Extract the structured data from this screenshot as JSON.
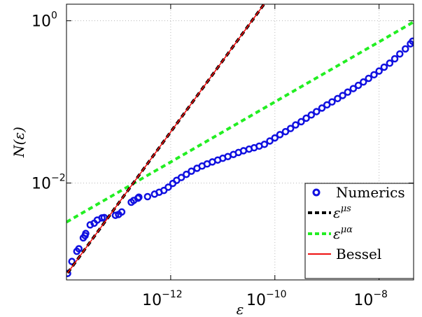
{
  "chart_data": {
    "type": "scatter",
    "title": "",
    "xlabel": "ε",
    "ylabel": "N(ε)",
    "xscale": "log",
    "yscale": "log",
    "xlim": [
      1e-14,
      4.6e-08
    ],
    "ylim": [
      0.00064,
      1.6
    ],
    "grid": true,
    "legend_position": "bottom-right",
    "x_ticks": [
      {
        "value": 1e-12,
        "base": "10",
        "exp": "−12"
      },
      {
        "value": 1e-10,
        "base": "10",
        "exp": "−10"
      },
      {
        "value": 1e-08,
        "base": "10",
        "exp": "−8"
      }
    ],
    "y_ticks": [
      {
        "value": 0.01,
        "base": "10",
        "exp": "−2"
      },
      {
        "value": 1,
        "base": "10",
        "exp": "0"
      }
    ],
    "legend": [
      {
        "key": "numerics",
        "label": "Numerics"
      },
      {
        "key": "mu_s",
        "label": "ε",
        "sup": "μs"
      },
      {
        "key": "mu_alpha",
        "label": "ε",
        "sup": "μα"
      },
      {
        "key": "bessel",
        "label": "Bessel"
      }
    ],
    "series": [
      {
        "key": "numerics",
        "type": "scatter",
        "color": "#1010e0",
        "points": [
          [
            1.05e-14,
            0.00077
          ],
          [
            1.27e-14,
            0.00108
          ],
          [
            1.58e-14,
            0.00144
          ],
          [
            1.73e-14,
            0.00155
          ],
          [
            2.1e-14,
            0.00211
          ],
          [
            2.27e-14,
            0.00225
          ],
          [
            2.34e-14,
            0.00239
          ],
          [
            2.85e-14,
            0.00305
          ],
          [
            3.4e-14,
            0.0032
          ],
          [
            3.9e-14,
            0.0035
          ],
          [
            4.8e-14,
            0.00372
          ],
          [
            5.3e-14,
            0.00376
          ],
          [
            8.7e-14,
            0.004
          ],
          [
            1e-13,
            0.0041
          ],
          [
            1.15e-13,
            0.0044
          ],
          [
            1.75e-13,
            0.0058
          ],
          [
            1.95e-13,
            0.0061
          ],
          [
            2.35e-13,
            0.0065
          ],
          [
            2.45e-13,
            0.0067
          ],
          [
            3.6e-13,
            0.0068
          ],
          [
            4.9e-13,
            0.0073
          ],
          [
            6e-13,
            0.0077
          ],
          [
            7.4e-13,
            0.0081
          ],
          [
            9e-13,
            0.0089
          ],
          [
            1.1e-12,
            0.0099
          ],
          [
            1.3e-12,
            0.0108
          ],
          [
            1.6e-12,
            0.0117
          ],
          [
            2e-12,
            0.0128
          ],
          [
            2.5e-12,
            0.014
          ],
          [
            3.2e-12,
            0.0152
          ],
          [
            4e-12,
            0.0162
          ],
          [
            5e-12,
            0.0172
          ],
          [
            6.3e-12,
            0.0182
          ],
          [
            8e-12,
            0.0192
          ],
          [
            1e-11,
            0.0202
          ],
          [
            1.25e-11,
            0.0212
          ],
          [
            1.6e-11,
            0.0225
          ],
          [
            2e-11,
            0.0238
          ],
          [
            2.5e-11,
            0.025
          ],
          [
            3.2e-11,
            0.0262
          ],
          [
            4e-11,
            0.0272
          ],
          [
            5e-11,
            0.0285
          ],
          [
            6.3e-11,
            0.03
          ],
          [
            8e-11,
            0.033
          ],
          [
            1e-10,
            0.036
          ],
          [
            1.25e-10,
            0.0395
          ],
          [
            1.6e-10,
            0.043
          ],
          [
            2e-10,
            0.047
          ],
          [
            2.5e-10,
            0.052
          ],
          [
            3.2e-10,
            0.057
          ],
          [
            4e-10,
            0.063
          ],
          [
            5e-10,
            0.069
          ],
          [
            6.3e-10,
            0.076
          ],
          [
            8e-10,
            0.084
          ],
          [
            1e-09,
            0.092
          ],
          [
            1.25e-09,
            0.1
          ],
          [
            1.6e-09,
            0.11
          ],
          [
            2e-09,
            0.12
          ],
          [
            2.5e-09,
            0.132
          ],
          [
            3.2e-09,
            0.146
          ],
          [
            4e-09,
            0.16
          ],
          [
            5e-09,
            0.176
          ],
          [
            6.3e-09,
            0.195
          ],
          [
            8e-09,
            0.216
          ],
          [
            1e-08,
            0.24
          ],
          [
            1.25e-08,
            0.268
          ],
          [
            1.6e-08,
            0.3
          ],
          [
            2e-08,
            0.34
          ],
          [
            2.5e-08,
            0.39
          ],
          [
            3.2e-08,
            0.45
          ],
          [
            4e-08,
            0.52
          ],
          [
            4.4e-08,
            0.56
          ]
        ]
      },
      {
        "key": "mu_s",
        "type": "line",
        "color": "#000000",
        "dash": "dashed",
        "points": [
          [
            1.05e-14,
            0.00078
          ],
          [
            6.2e-11,
            1.6
          ]
        ]
      },
      {
        "key": "mu_alpha",
        "type": "line",
        "color": "#22ee22",
        "dash": "dashed",
        "points": [
          [
            1e-14,
            0.0033
          ],
          [
            4.5e-08,
            0.96
          ]
        ]
      },
      {
        "key": "bessel",
        "type": "line",
        "color": "#ee1111",
        "dash": "solid",
        "points": [
          [
            1.05e-14,
            0.00078
          ],
          [
            6.2e-11,
            1.6
          ]
        ]
      }
    ]
  }
}
